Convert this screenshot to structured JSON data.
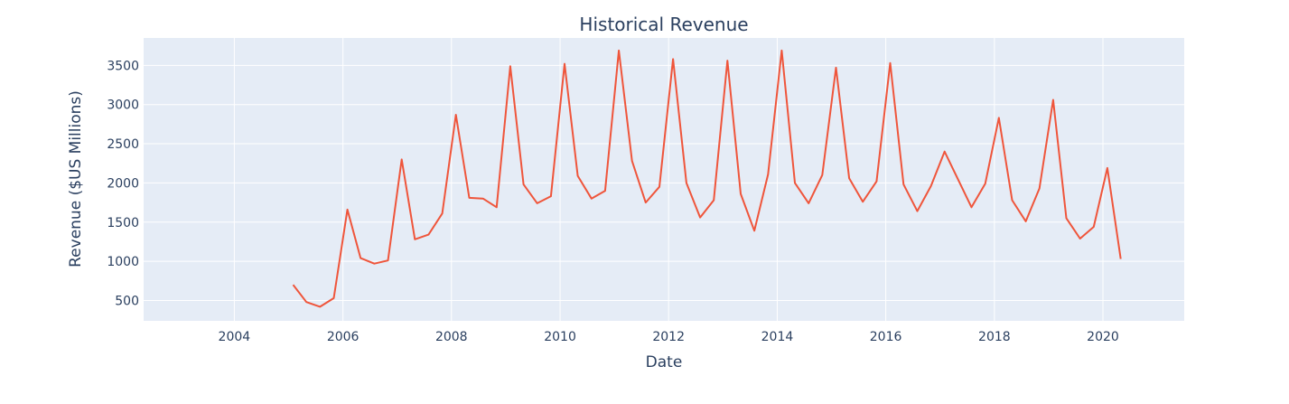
{
  "chart_data": {
    "type": "line",
    "title": "Historical Revenue",
    "xlabel": "Date",
    "ylabel": "Revenue ($US Millions)",
    "xlim": [
      "2002-05-01",
      "2021-07-01"
    ],
    "ylim": [
      240,
      3850
    ],
    "x_ticks": [
      "2004",
      "2006",
      "2008",
      "2010",
      "2012",
      "2014",
      "2016",
      "2018",
      "2020"
    ],
    "y_ticks": [
      500,
      1000,
      1500,
      2000,
      2500,
      3000,
      3500
    ],
    "grid": true,
    "colors": {
      "plot_background": "#e5ecf6",
      "grid": "#ffffff",
      "line": "#ef553b",
      "text": "#2a3f5f"
    },
    "series": [
      {
        "x": [
          "2005-01-31",
          "2005-04-30",
          "2005-07-31",
          "2005-10-31",
          "2006-01-31",
          "2006-04-30",
          "2006-07-31",
          "2006-10-31",
          "2007-01-31",
          "2007-04-30",
          "2007-07-31",
          "2007-10-31",
          "2008-01-31",
          "2008-04-30",
          "2008-07-31",
          "2008-10-31",
          "2009-01-31",
          "2009-04-30",
          "2009-07-31",
          "2009-10-31",
          "2010-01-31",
          "2010-04-30",
          "2010-07-31",
          "2010-10-31",
          "2011-01-31",
          "2011-04-30",
          "2011-07-31",
          "2011-10-31",
          "2012-01-31",
          "2012-04-30",
          "2012-07-31",
          "2012-10-31",
          "2013-01-31",
          "2013-04-30",
          "2013-07-31",
          "2013-10-31",
          "2014-01-31",
          "2014-04-30",
          "2014-07-31",
          "2014-10-31",
          "2015-01-31",
          "2015-04-30",
          "2015-07-31",
          "2015-10-31",
          "2016-01-31",
          "2016-04-30",
          "2016-07-31",
          "2016-10-31",
          "2017-01-31",
          "2017-04-30",
          "2017-07-31",
          "2017-10-31",
          "2018-01-31",
          "2018-04-30",
          "2018-07-31",
          "2018-10-31",
          "2019-01-31",
          "2019-04-30",
          "2019-07-31",
          "2019-10-31",
          "2020-01-31",
          "2020-04-30"
        ],
        "values": [
          700,
          480,
          420,
          530,
          1660,
          1040,
          970,
          1010,
          2300,
          1280,
          1340,
          1610,
          2870,
          1810,
          1800,
          1690,
          3490,
          1980,
          1740,
          1830,
          3520,
          2090,
          1800,
          1900,
          3690,
          2280,
          1750,
          1950,
          3580,
          2000,
          1560,
          1780,
          3560,
          1860,
          1390,
          2110,
          3690,
          2000,
          1740,
          2100,
          3470,
          2060,
          1760,
          2020,
          3530,
          1980,
          1640,
          1960,
          2400,
          2050,
          1690,
          1990,
          2830,
          1780,
          1510,
          1930,
          3060,
          1550,
          1290,
          1440,
          2190,
          1030
        ]
      }
    ]
  }
}
